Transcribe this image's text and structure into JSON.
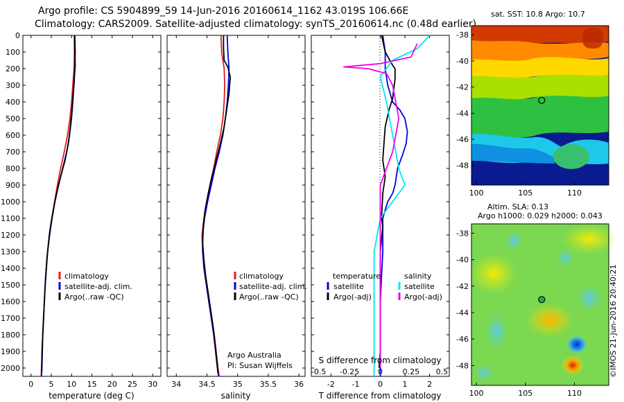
{
  "header": {
    "line1": "Argo profile: CS 5904899_59 14-Jun-2016 20160614_1162 43.019S 106.66E",
    "line2": "Climatology: CARS2009. Satellite-adjusted climatology: synTS_20160614.nc (0.48d earlier)"
  },
  "credit": {
    "line1": "Argo Australia",
    "line2": "PI: Susan Wijffels"
  },
  "stamp": "©IMOS 21-Jun-2016 20:40:21",
  "sst_map": {
    "title": "sat. SST: 10.8 Argo: 10.7"
  },
  "sla_map": {
    "title1": "Altim. SLA: 0.13",
    "title2": "Argo h1000: 0.029 h2000: 0.043"
  },
  "colors": {
    "climatology": "#e41a1c",
    "satellite": "#0000dd",
    "argo": "#000000",
    "sal_sat": "#00e5ee",
    "sal_argo": "#ee00ee"
  },
  "chart_data": [
    {
      "type": "line",
      "name": "temperature-profile",
      "xlabel": "temperature (deg C)",
      "xlim": [
        -2,
        32
      ],
      "xticks": [
        0,
        5,
        10,
        15,
        20,
        25,
        30
      ],
      "ylim": [
        0,
        2050
      ],
      "yticks": [
        0,
        100,
        200,
        300,
        400,
        500,
        600,
        700,
        800,
        900,
        1000,
        1100,
        1200,
        1300,
        1400,
        1500,
        1600,
        1700,
        1800,
        1900,
        2000
      ],
      "legend": [
        "climatology",
        "satellite-adj. clim.",
        "Argo(..raw -QC)"
      ],
      "series": [
        {
          "name": "climatology",
          "color": "#e41a1c",
          "points": [
            [
              10.7,
              0
            ],
            [
              10.7,
              100
            ],
            [
              10.6,
              200
            ],
            [
              10.3,
              300
            ],
            [
              10.0,
              400
            ],
            [
              9.6,
              500
            ],
            [
              9.0,
              600
            ],
            [
              8.2,
              700
            ],
            [
              7.3,
              800
            ],
            [
              6.5,
              900
            ],
            [
              5.8,
              1000
            ],
            [
              5.1,
              1100
            ],
            [
              4.5,
              1200
            ],
            [
              4.1,
              1300
            ],
            [
              3.8,
              1400
            ],
            [
              3.5,
              1500
            ],
            [
              3.3,
              1600
            ],
            [
              3.1,
              1700
            ],
            [
              2.9,
              1800
            ],
            [
              2.7,
              1900
            ],
            [
              2.6,
              2000
            ],
            [
              2.5,
              2050
            ]
          ]
        },
        {
          "name": "satellite-adj. clim.",
          "color": "#0000dd",
          "points": [
            [
              10.8,
              0
            ],
            [
              10.9,
              100
            ],
            [
              10.8,
              200
            ],
            [
              10.6,
              300
            ],
            [
              10.3,
              400
            ],
            [
              10.0,
              500
            ],
            [
              9.5,
              600
            ],
            [
              8.8,
              700
            ],
            [
              7.8,
              800
            ],
            [
              6.8,
              900
            ],
            [
              5.9,
              1000
            ],
            [
              5.2,
              1100
            ],
            [
              4.6,
              1200
            ],
            [
              4.1,
              1300
            ],
            [
              3.8,
              1400
            ],
            [
              3.5,
              1500
            ],
            [
              3.3,
              1600
            ],
            [
              3.1,
              1700
            ],
            [
              2.9,
              1800
            ],
            [
              2.8,
              1900
            ],
            [
              2.7,
              2000
            ],
            [
              2.6,
              2050
            ]
          ]
        },
        {
          "name": "Argo(..raw -QC)",
          "color": "#000000",
          "points": [
            [
              10.7,
              0
            ],
            [
              10.8,
              100
            ],
            [
              10.9,
              180
            ],
            [
              10.7,
              250
            ],
            [
              10.4,
              350
            ],
            [
              10.1,
              450
            ],
            [
              9.7,
              550
            ],
            [
              9.2,
              650
            ],
            [
              8.4,
              750
            ],
            [
              7.3,
              850
            ],
            [
              6.3,
              950
            ],
            [
              5.5,
              1050
            ],
            [
              4.8,
              1150
            ],
            [
              4.3,
              1250
            ],
            [
              3.9,
              1350
            ],
            [
              3.6,
              1450
            ],
            [
              3.4,
              1550
            ],
            [
              3.2,
              1650
            ],
            [
              3.0,
              1750
            ],
            [
              2.8,
              1850
            ],
            [
              2.7,
              1950
            ],
            [
              2.6,
              2020
            ]
          ]
        }
      ]
    },
    {
      "type": "line",
      "name": "salinity-profile",
      "xlabel": "salinity",
      "xlim": [
        33.85,
        36.1
      ],
      "xticks": [
        34,
        34.5,
        35,
        35.5,
        36
      ],
      "xticklabels": [
        "34",
        "34.5",
        "35",
        "35.5",
        "36"
      ],
      "ylim": [
        0,
        2050
      ],
      "legend": [
        "climatology",
        "satellite-adj. clim.",
        "Argo(..raw -QC)"
      ],
      "series": [
        {
          "name": "climatology",
          "color": "#e41a1c",
          "points": [
            [
              34.73,
              0
            ],
            [
              34.74,
              100
            ],
            [
              34.78,
              200
            ],
            [
              34.79,
              300
            ],
            [
              34.78,
              400
            ],
            [
              34.76,
              500
            ],
            [
              34.72,
              600
            ],
            [
              34.66,
              700
            ],
            [
              34.61,
              800
            ],
            [
              34.55,
              900
            ],
            [
              34.5,
              1000
            ],
            [
              34.45,
              1100
            ],
            [
              34.42,
              1200
            ],
            [
              34.43,
              1300
            ],
            [
              34.46,
              1400
            ],
            [
              34.5,
              1500
            ],
            [
              34.54,
              1600
            ],
            [
              34.58,
              1700
            ],
            [
              34.62,
              1800
            ],
            [
              34.65,
              1900
            ],
            [
              34.68,
              2000
            ],
            [
              34.7,
              2050
            ]
          ]
        },
        {
          "name": "satellite-adj. clim.",
          "color": "#0000dd",
          "points": [
            [
              34.83,
              0
            ],
            [
              34.84,
              100
            ],
            [
              34.86,
              200
            ],
            [
              34.85,
              300
            ],
            [
              34.83,
              400
            ],
            [
              34.8,
              500
            ],
            [
              34.76,
              600
            ],
            [
              34.7,
              700
            ],
            [
              34.63,
              800
            ],
            [
              34.57,
              900
            ],
            [
              34.51,
              1000
            ],
            [
              34.46,
              1100
            ],
            [
              34.43,
              1200
            ],
            [
              34.43,
              1300
            ],
            [
              34.45,
              1400
            ],
            [
              34.49,
              1500
            ],
            [
              34.53,
              1600
            ],
            [
              34.57,
              1700
            ],
            [
              34.61,
              1800
            ],
            [
              34.64,
              1900
            ],
            [
              34.67,
              2000
            ],
            [
              34.69,
              2050
            ]
          ]
        },
        {
          "name": "Argo(..raw -QC)",
          "color": "#000000",
          "points": [
            [
              34.77,
              0
            ],
            [
              34.77,
              80
            ],
            [
              34.78,
              150
            ],
            [
              34.84,
              190
            ],
            [
              34.88,
              250
            ],
            [
              34.86,
              350
            ],
            [
              34.82,
              450
            ],
            [
              34.78,
              550
            ],
            [
              34.72,
              650
            ],
            [
              34.65,
              750
            ],
            [
              34.58,
              850
            ],
            [
              34.52,
              950
            ],
            [
              34.47,
              1050
            ],
            [
              34.44,
              1150
            ],
            [
              34.43,
              1250
            ],
            [
              34.45,
              1350
            ],
            [
              34.48,
              1450
            ],
            [
              34.52,
              1550
            ],
            [
              34.56,
              1650
            ],
            [
              34.6,
              1750
            ],
            [
              34.63,
              1850
            ],
            [
              34.66,
              1950
            ],
            [
              34.68,
              2030
            ]
          ]
        }
      ]
    },
    {
      "type": "line",
      "name": "difference-profile",
      "xlabel": "T difference from climatology",
      "xlabel_top": "S difference from climatology",
      "t_xlim": [
        -2.8,
        2.8
      ],
      "t_xticks": [
        -2,
        -1,
        0,
        1,
        2
      ],
      "s_xticks": [
        -0.5,
        -0.25,
        0,
        0.25,
        0.5
      ],
      "s_xticklabels": [
        "-0.5",
        "-0.25",
        "0",
        "0.25",
        "0.5"
      ],
      "ylim": [
        0,
        2050
      ],
      "legend_temperature": {
        "heading": "temperature",
        "items": [
          "satellite",
          "Argo(-adj)"
        ]
      },
      "legend_salinity": {
        "heading": "salinity",
        "items": [
          "satellite",
          "Argo(-adj)"
        ]
      },
      "series": [
        {
          "name": "T satellite",
          "color": "#0000dd",
          "points": [
            [
              0.1,
              0
            ],
            [
              0.2,
              100
            ],
            [
              0.2,
              200
            ],
            [
              0.3,
              300
            ],
            [
              0.5,
              400
            ],
            [
              0.8,
              450
            ],
            [
              1.0,
              500
            ],
            [
              1.1,
              580
            ],
            [
              1.05,
              650
            ],
            [
              0.9,
              720
            ],
            [
              0.7,
              800
            ],
            [
              0.6,
              900
            ],
            [
              0.5,
              950
            ],
            [
              0.3,
              1000
            ],
            [
              0.1,
              1100
            ],
            [
              0.1,
              1300
            ],
            [
              0.0,
              1600
            ],
            [
              0.0,
              2050
            ]
          ]
        },
        {
          "name": "T Argo(-adj)",
          "color": "#000000",
          "points": [
            [
              0.05,
              0
            ],
            [
              0.2,
              100
            ],
            [
              0.5,
              180
            ],
            [
              0.6,
              200
            ],
            [
              0.6,
              260
            ],
            [
              0.55,
              320
            ],
            [
              0.5,
              380
            ],
            [
              0.35,
              450
            ],
            [
              0.2,
              550
            ],
            [
              0.15,
              650
            ],
            [
              0.1,
              750
            ],
            [
              0.2,
              850
            ],
            [
              0.1,
              950
            ],
            [
              0.05,
              1100
            ],
            [
              0.1,
              1150
            ],
            [
              0.0,
              1300
            ],
            [
              0.0,
              1600
            ],
            [
              0.0,
              1900
            ],
            [
              -0.05,
              2000
            ]
          ]
        },
        {
          "name": "S satellite",
          "color": "#00e5ee",
          "points": [
            [
              0.4,
              0
            ],
            [
              0.3,
              80
            ],
            [
              0.1,
              150
            ],
            [
              0.0,
              250
            ],
            [
              0.05,
              400
            ],
            [
              0.1,
              600
            ],
            [
              0.15,
              800
            ],
            [
              0.2,
              900
            ],
            [
              0.1,
              1000
            ],
            [
              0.0,
              1100
            ],
            [
              -0.05,
              1300
            ],
            [
              -0.05,
              1600
            ],
            [
              -0.05,
              1800
            ],
            [
              -0.05,
              2050
            ]
          ]
        },
        {
          "name": "S Argo(-adj)",
          "color": "#ee00ee",
          "points": [
            [
              0.3,
              50
            ],
            [
              0.25,
              130
            ],
            [
              0.0,
              170
            ],
            [
              -0.3,
              190
            ],
            [
              -0.1,
              200
            ],
            [
              0.05,
              230
            ],
            [
              0.1,
              300
            ],
            [
              0.15,
              500
            ],
            [
              0.1,
              700
            ],
            [
              0.0,
              900
            ],
            [
              0.0,
              1100
            ],
            [
              0.0,
              1400
            ],
            [
              0.0,
              1700
            ],
            [
              0.0,
              2000
            ]
          ]
        }
      ]
    },
    {
      "type": "heatmap",
      "name": "sst-map",
      "xticks": [
        100,
        105,
        110
      ],
      "yticks": [
        -38,
        -40,
        -42,
        -44,
        -46,
        -48
      ],
      "xlim": [
        99.5,
        113.5
      ],
      "ylim": [
        -49.5,
        -37.3
      ],
      "argo_position": [
        106.66,
        -43.02
      ]
    },
    {
      "type": "heatmap",
      "name": "sla-map",
      "xticks": [
        100,
        105,
        110
      ],
      "yticks": [
        -38,
        -40,
        -42,
        -44,
        -46,
        -48
      ],
      "xlim": [
        99.5,
        113.5
      ],
      "ylim": [
        -49.5,
        -37.3
      ],
      "argo_position": [
        106.66,
        -43.02
      ]
    }
  ]
}
